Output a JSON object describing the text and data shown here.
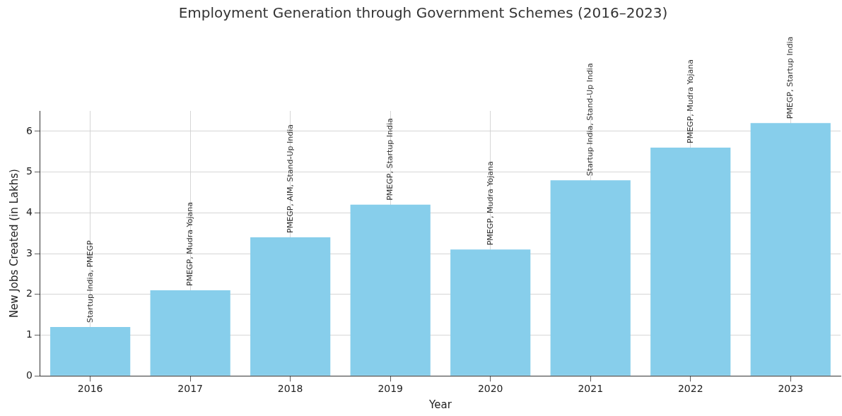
{
  "chart_data": {
    "type": "bar",
    "title": "Employment Generation through Government Schemes (2016–2023)",
    "xlabel": "Year",
    "ylabel": "New Jobs Created (in Lakhs)",
    "categories": [
      "2016",
      "2017",
      "2018",
      "2019",
      "2020",
      "2021",
      "2022",
      "2023"
    ],
    "values": [
      1.2,
      2.1,
      3.4,
      4.2,
      3.1,
      4.8,
      5.6,
      6.2
    ],
    "color": "#87ceeb",
    "ylim": [
      0,
      6.5
    ],
    "yticks": [
      0,
      1,
      2,
      3,
      4,
      5,
      6
    ],
    "grid": true,
    "annotations": [
      {
        "text": "Startup India, PMEGP",
        "x": "2016",
        "y": 1.2
      },
      {
        "text": "PMEGP, Mudra Yojana",
        "x": "2017",
        "y": 2.1
      },
      {
        "text": "PMEGP, AIM, Stand-Up India",
        "x": "2018",
        "y": 3.4
      },
      {
        "text": "PMEGP, Startup India",
        "x": "2019",
        "y": 4.2
      },
      {
        "text": "PMEGP, Mudra Yojana",
        "x": "2020",
        "y": 3.1
      },
      {
        "text": "Startup India, Stand-Up India",
        "x": "2021",
        "y": 4.8
      },
      {
        "text": "PMEGP, Mudra Yojana",
        "x": "2022",
        "y": 5.6
      },
      {
        "text": "PMEGP, Startup India",
        "x": "2023",
        "y": 6.2
      }
    ]
  }
}
